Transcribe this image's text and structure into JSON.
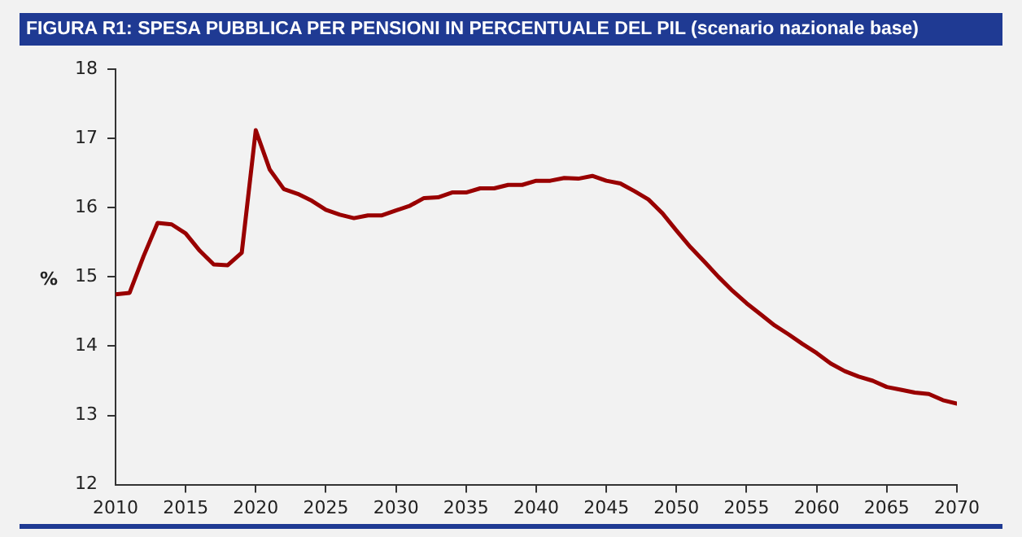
{
  "chart_data": {
    "type": "line",
    "title": "FIGURA R1: SPESA PUBBLICA PER PENSIONI IN PERCENTUALE DEL PIL (scenario nazionale base)",
    "ylabel": "%",
    "x": [
      2010,
      2011,
      2012,
      2013,
      2014,
      2015,
      2016,
      2017,
      2018,
      2019,
      2020,
      2021,
      2022,
      2023,
      2024,
      2025,
      2026,
      2027,
      2028,
      2029,
      2030,
      2031,
      2032,
      2033,
      2034,
      2035,
      2036,
      2037,
      2038,
      2039,
      2040,
      2041,
      2042,
      2043,
      2044,
      2045,
      2046,
      2047,
      2048,
      2049,
      2050,
      2051,
      2052,
      2053,
      2054,
      2055,
      2056,
      2057,
      2058,
      2059,
      2060,
      2061,
      2062,
      2063,
      2064,
      2065,
      2066,
      2067,
      2068,
      2069,
      2070
    ],
    "series": [
      {
        "color": "#990000",
        "values": [
          14.75,
          14.77,
          15.3,
          15.78,
          15.76,
          15.63,
          15.38,
          15.18,
          15.17,
          15.35,
          17.12,
          16.55,
          16.27,
          16.2,
          16.1,
          15.97,
          15.9,
          15.85,
          15.89,
          15.89,
          15.96,
          16.03,
          16.14,
          16.15,
          16.22,
          16.22,
          16.28,
          16.28,
          16.33,
          16.33,
          16.39,
          16.39,
          16.43,
          16.42,
          16.46,
          16.39,
          16.35,
          16.24,
          16.12,
          15.92,
          15.67,
          15.43,
          15.22,
          15.0,
          14.8,
          14.62,
          14.46,
          14.3,
          14.17,
          14.03,
          13.9,
          13.75,
          13.64,
          13.56,
          13.5,
          13.41,
          13.37,
          13.33,
          13.31,
          13.22,
          13.17
        ]
      }
    ],
    "xlim": [
      2010,
      2070
    ],
    "xticks": [
      2010,
      2015,
      2020,
      2025,
      2030,
      2035,
      2040,
      2045,
      2050,
      2055,
      2060,
      2065,
      2070
    ],
    "ylim": [
      12,
      18
    ],
    "yticks": [
      12,
      13,
      14,
      15,
      16,
      17,
      18
    ],
    "grid": false,
    "legend": false,
    "marker": "none",
    "line_style": "solid"
  }
}
